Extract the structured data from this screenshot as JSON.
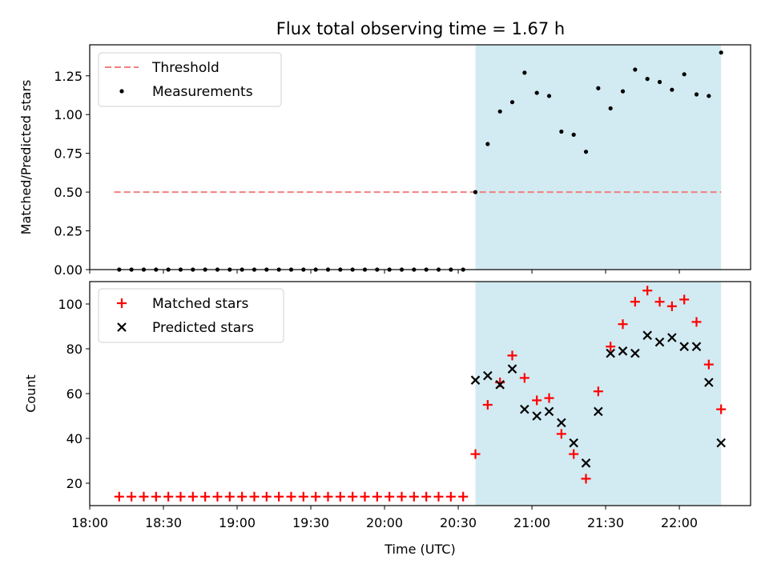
{
  "title": "Flux total observing time = 1.67 h",
  "colors": {
    "threshold": "#f08080",
    "measurement": "#000000",
    "matched": "#ff0000",
    "predicted": "#000000",
    "span": "#add8e6"
  },
  "chart_data": [
    {
      "type": "scatter",
      "ylabel": "Matched/Predicted stars",
      "ylim": [
        0,
        1.45
      ],
      "yticks": [
        0.0,
        0.25,
        0.5,
        0.75,
        1.0,
        1.25
      ],
      "ytick_labels": [
        "0.00",
        "0.25",
        "0.50",
        "0.75",
        "1.00",
        "1.25"
      ],
      "legend": {
        "placement": "upper-left",
        "entries": [
          "Threshold",
          "Measurements"
        ]
      },
      "threshold": {
        "name": "Threshold",
        "value": 0.5,
        "x_range": [
          "18:10",
          "22:17"
        ]
      },
      "highlight_span": [
        "20:37",
        "22:17"
      ],
      "series": [
        {
          "name": "Measurements",
          "x": [
            "18:12",
            "18:17",
            "18:22",
            "18:27",
            "18:32",
            "18:37",
            "18:42",
            "18:47",
            "18:52",
            "18:57",
            "19:02",
            "19:07",
            "19:12",
            "19:17",
            "19:22",
            "19:27",
            "19:32",
            "19:37",
            "19:42",
            "19:47",
            "19:52",
            "19:57",
            "20:02",
            "20:07",
            "20:12",
            "20:17",
            "20:22",
            "20:27",
            "20:32",
            "20:37",
            "20:42",
            "20:47",
            "20:52",
            "20:57",
            "21:02",
            "21:07",
            "21:12",
            "21:17",
            "21:22",
            "21:27",
            "21:32",
            "21:37",
            "21:42",
            "21:47",
            "21:52",
            "21:57",
            "22:02",
            "22:07",
            "22:12",
            "22:17"
          ],
          "y": [
            0,
            0,
            0,
            0,
            0,
            0,
            0,
            0,
            0,
            0,
            0,
            0,
            0,
            0,
            0,
            0,
            0,
            0,
            0,
            0,
            0,
            0,
            0,
            0,
            0,
            0,
            0,
            0,
            0,
            0.5,
            0.81,
            1.02,
            1.08,
            1.27,
            1.14,
            1.12,
            0.89,
            0.87,
            0.76,
            1.17,
            1.04,
            1.15,
            1.29,
            1.23,
            1.21,
            1.16,
            1.26,
            1.13,
            1.12,
            1.4
          ]
        }
      ]
    },
    {
      "type": "scatter",
      "xlabel": "Time (UTC)",
      "ylabel": "Count",
      "ylim": [
        10,
        110
      ],
      "yticks": [
        20,
        40,
        60,
        80,
        100
      ],
      "xlim": [
        "18:00",
        "22:29"
      ],
      "xticks": [
        "18:00",
        "18:30",
        "19:00",
        "19:30",
        "20:00",
        "20:30",
        "21:00",
        "21:30",
        "22:00"
      ],
      "legend": {
        "placement": "upper-left",
        "entries": [
          "Matched stars",
          "Predicted stars"
        ]
      },
      "highlight_span": [
        "20:37",
        "22:17"
      ],
      "series": [
        {
          "name": "Matched stars",
          "marker": "+",
          "x": [
            "18:12",
            "18:17",
            "18:22",
            "18:27",
            "18:32",
            "18:37",
            "18:42",
            "18:47",
            "18:52",
            "18:57",
            "19:02",
            "19:07",
            "19:12",
            "19:17",
            "19:22",
            "19:27",
            "19:32",
            "19:37",
            "19:42",
            "19:47",
            "19:52",
            "19:57",
            "20:02",
            "20:07",
            "20:12",
            "20:17",
            "20:22",
            "20:27",
            "20:32",
            "20:37",
            "20:42",
            "20:47",
            "20:52",
            "20:57",
            "21:02",
            "21:07",
            "21:12",
            "21:17",
            "21:22",
            "21:27",
            "21:32",
            "21:37",
            "21:42",
            "21:47",
            "21:52",
            "21:57",
            "22:02",
            "22:07",
            "22:12",
            "22:17"
          ],
          "y": [
            14,
            14,
            14,
            14,
            14,
            14,
            14,
            14,
            14,
            14,
            14,
            14,
            14,
            14,
            14,
            14,
            14,
            14,
            14,
            14,
            14,
            14,
            14,
            14,
            14,
            14,
            14,
            14,
            14,
            33,
            55,
            65,
            77,
            67,
            57,
            58,
            42,
            33,
            22,
            61,
            81,
            91,
            101,
            106,
            101,
            99,
            102,
            92,
            73,
            53
          ]
        },
        {
          "name": "Predicted stars",
          "marker": "x",
          "x": [
            "20:37",
            "20:42",
            "20:47",
            "20:52",
            "20:57",
            "21:02",
            "21:07",
            "21:12",
            "21:17",
            "21:22",
            "21:27",
            "21:32",
            "21:37",
            "21:42",
            "21:47",
            "21:52",
            "21:57",
            "22:02",
            "22:07",
            "22:12",
            "22:17"
          ],
          "y": [
            66,
            68,
            64,
            71,
            53,
            50,
            52,
            47,
            38,
            29,
            52,
            78,
            79,
            78,
            86,
            83,
            85,
            81,
            81,
            65,
            38
          ]
        }
      ]
    }
  ]
}
